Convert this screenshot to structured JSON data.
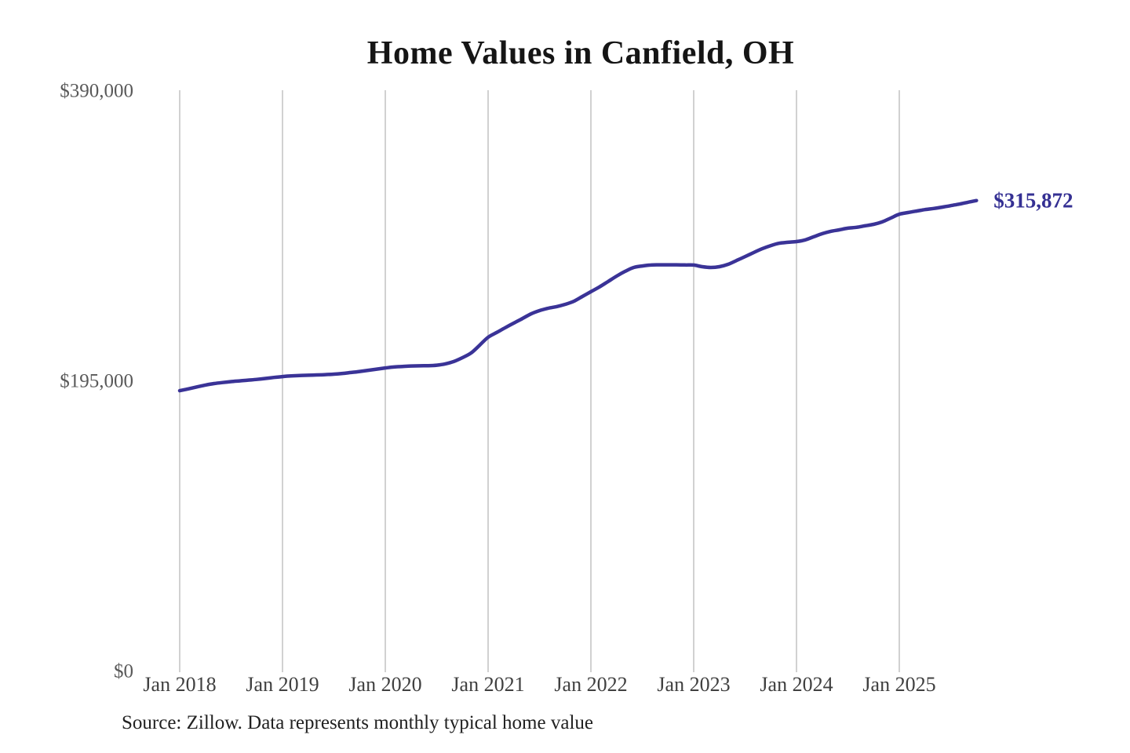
{
  "chart_data": {
    "type": "line",
    "title": "Home Values in Canfield, OH",
    "source_note": "Source: Zillow. Data represents monthly typical home value",
    "end_label": "$315,872",
    "legend": "none",
    "grid": "vertical-only",
    "ylim": [
      0,
      390000
    ],
    "y_ticks": [
      {
        "value": 0,
        "label": "$0"
      },
      {
        "value": 195000,
        "label": "$195,000"
      },
      {
        "value": 390000,
        "label": "$390,000"
      }
    ],
    "x_tick_labels": [
      "Jan 2018",
      "Jan 2019",
      "Jan 2020",
      "Jan 2021",
      "Jan 2022",
      "Jan 2023",
      "Jan 2024",
      "Jan 2025"
    ],
    "colors": {
      "line": "#3a3397",
      "end_label": "#353093",
      "gridline": "#cccccc"
    },
    "series": [
      {
        "name": "Monthly typical home value",
        "x": [
          "2018-01",
          "2018-02",
          "2018-03",
          "2018-04",
          "2018-05",
          "2018-06",
          "2018-07",
          "2018-08",
          "2018-09",
          "2018-10",
          "2018-11",
          "2018-12",
          "2019-01",
          "2019-02",
          "2019-03",
          "2019-04",
          "2019-05",
          "2019-06",
          "2019-07",
          "2019-08",
          "2019-09",
          "2019-10",
          "2019-11",
          "2019-12",
          "2020-01",
          "2020-02",
          "2020-03",
          "2020-04",
          "2020-05",
          "2020-06",
          "2020-07",
          "2020-08",
          "2020-09",
          "2020-10",
          "2020-11",
          "2020-12",
          "2021-01",
          "2021-02",
          "2021-03",
          "2021-04",
          "2021-05",
          "2021-06",
          "2021-07",
          "2021-08",
          "2021-09",
          "2021-10",
          "2021-11",
          "2021-12",
          "2022-01",
          "2022-02",
          "2022-03",
          "2022-04",
          "2022-05",
          "2022-06",
          "2022-07",
          "2022-08",
          "2022-09",
          "2022-10",
          "2022-11",
          "2022-12",
          "2023-01",
          "2023-02",
          "2023-03",
          "2023-04",
          "2023-05",
          "2023-06",
          "2023-07",
          "2023-08",
          "2023-09",
          "2023-10",
          "2023-11",
          "2023-12",
          "2024-01",
          "2024-02",
          "2024-03",
          "2024-04",
          "2024-05",
          "2024-06",
          "2024-07",
          "2024-08",
          "2024-09",
          "2024-10",
          "2024-11",
          "2024-12",
          "2025-01",
          "2025-02",
          "2025-03",
          "2025-04",
          "2025-05",
          "2025-06",
          "2025-07",
          "2025-08",
          "2025-09",
          "2025-10"
        ],
        "values": [
          188100,
          189300,
          190600,
          191900,
          192900,
          193600,
          194200,
          194700,
          195200,
          195700,
          196300,
          197000,
          197600,
          198000,
          198300,
          198500,
          198700,
          198900,
          199200,
          199700,
          200300,
          201000,
          201800,
          202600,
          203400,
          204000,
          204400,
          204700,
          204800,
          204900,
          205200,
          206100,
          207700,
          210300,
          213400,
          218600,
          224000,
          227200,
          230400,
          233500,
          236600,
          239700,
          241900,
          243500,
          244600,
          246100,
          248200,
          251400,
          254600,
          257800,
          261400,
          265100,
          268300,
          270900,
          271900,
          272500,
          272700,
          272700,
          272700,
          272600,
          272500,
          271400,
          270900,
          271400,
          273000,
          275600,
          278200,
          280900,
          283500,
          285600,
          287200,
          287800,
          288300,
          289400,
          291500,
          293600,
          295200,
          296200,
          297300,
          297900,
          298900,
          299900,
          301500,
          304100,
          306700,
          307800,
          308800,
          309800,
          310500,
          311400,
          312400,
          313500,
          314700,
          315872
        ]
      }
    ]
  }
}
